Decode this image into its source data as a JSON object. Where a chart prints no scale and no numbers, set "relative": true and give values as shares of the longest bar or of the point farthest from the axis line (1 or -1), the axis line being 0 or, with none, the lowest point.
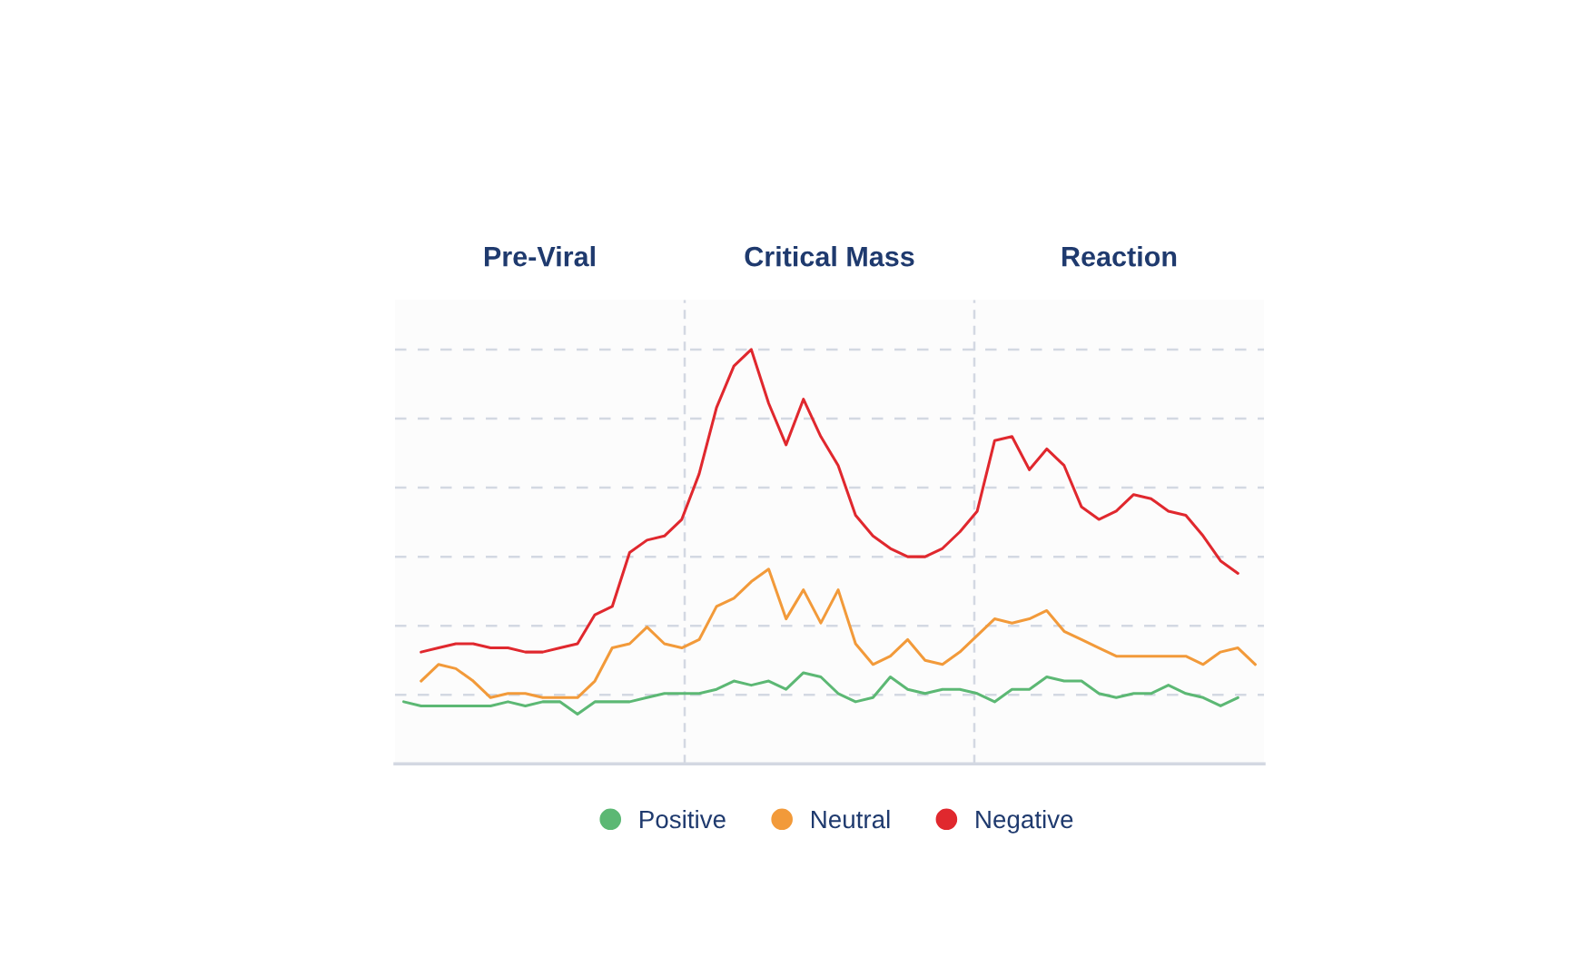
{
  "chart_data": {
    "type": "line",
    "relative": true,
    "tick_labels": false,
    "grid": "y",
    "legend": "bottom",
    "marker": "none",
    "line_style": "solid",
    "categories": [
      null,
      null,
      null,
      null,
      null,
      null,
      null,
      null,
      null,
      null,
      null,
      null,
      null,
      null,
      null,
      null,
      null,
      null,
      null,
      null,
      null,
      null,
      null,
      null,
      null,
      null,
      null,
      null,
      null,
      null,
      null,
      null,
      null,
      null,
      null,
      null,
      null,
      null,
      null,
      null,
      null,
      null,
      null,
      null,
      null,
      null,
      null,
      null,
      null,
      null
    ],
    "series": [
      {
        "name": "Positive",
        "color": "#5cb874",
        "values": [
          0.15,
          0.14,
          0.14,
          0.14,
          0.14,
          0.14,
          0.15,
          0.14,
          0.15,
          0.15,
          0.12,
          0.15,
          0.15,
          0.15,
          0.16,
          0.17,
          0.17,
          0.17,
          0.18,
          0.2,
          0.19,
          0.2,
          0.18,
          0.22,
          0.21,
          0.17,
          0.15,
          0.16,
          0.21,
          0.18,
          0.17,
          0.18,
          0.18,
          0.17,
          0.15,
          0.18,
          0.18,
          0.21,
          0.2,
          0.2,
          0.17,
          0.16,
          0.17,
          0.17,
          0.19,
          0.17,
          0.16,
          0.14,
          0.16,
          null
        ]
      },
      {
        "name": "Neutral",
        "color": "#f29a3a",
        "values": [
          null,
          0.2,
          0.24,
          0.23,
          0.2,
          0.16,
          0.17,
          0.17,
          0.16,
          0.16,
          0.16,
          0.2,
          0.28,
          0.29,
          0.33,
          0.29,
          0.28,
          0.3,
          0.38,
          0.4,
          0.44,
          0.47,
          0.35,
          0.42,
          0.34,
          0.42,
          0.29,
          0.24,
          0.26,
          0.3,
          0.25,
          0.24,
          0.27,
          0.31,
          0.35,
          0.34,
          0.35,
          0.37,
          0.32,
          0.3,
          0.28,
          0.26,
          0.26,
          0.26,
          0.26,
          0.26,
          0.24,
          0.27,
          0.28,
          0.24
        ]
      },
      {
        "name": "Negative",
        "color": "#e0282e",
        "values": [
          null,
          0.27,
          0.28,
          0.29,
          0.29,
          0.28,
          0.28,
          0.27,
          0.27,
          0.28,
          0.29,
          0.36,
          0.38,
          0.51,
          0.54,
          0.55,
          0.59,
          0.7,
          0.86,
          0.96,
          1.0,
          0.87,
          0.77,
          0.88,
          0.79,
          0.72,
          0.6,
          0.55,
          0.52,
          0.5,
          0.5,
          0.52,
          0.56,
          0.61,
          0.78,
          0.79,
          0.71,
          0.76,
          0.72,
          0.62,
          0.59,
          0.61,
          0.65,
          0.64,
          0.61,
          0.6,
          0.55,
          0.49,
          0.46,
          null
        ]
      }
    ],
    "annotations": [
      "Pre-Viral",
      "Critical Mass",
      "Reaction"
    ]
  }
}
